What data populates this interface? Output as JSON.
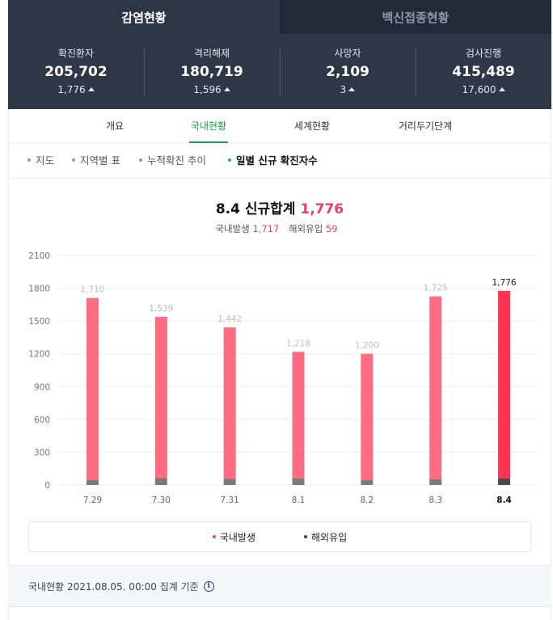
{
  "top_tabs": [
    {
      "label": "감염현황",
      "active": true
    },
    {
      "label": "백신접종현황",
      "active": false
    }
  ],
  "stats": [
    {
      "label": "확진환자",
      "value": "205,702",
      "delta": "1,776"
    },
    {
      "label": "격리해제",
      "value": "180,719",
      "delta": "1,596"
    },
    {
      "label": "사망자",
      "value": "2,109",
      "delta": "3"
    },
    {
      "label": "검사진행",
      "value": "415,489",
      "delta": "17,600"
    }
  ],
  "sub_tabs": [
    {
      "label": "개요",
      "active": false
    },
    {
      "label": "국내현황",
      "active": true
    },
    {
      "label": "세계현황",
      "active": false
    },
    {
      "label": "거리두기단계",
      "active": false
    }
  ],
  "filters": [
    {
      "label": "지도",
      "active": false
    },
    {
      "label": "지역별 표",
      "active": false
    },
    {
      "label": "누적확진 추이",
      "active": false
    },
    {
      "label": "일별 신규 확진자수",
      "active": true
    }
  ],
  "summary": {
    "title_prefix": "8.4 신규합계",
    "total": "1,776",
    "domestic_label": "국내발생",
    "domestic_value": "1,717",
    "overseas_label": "해외유입",
    "overseas_value": "59"
  },
  "chart_data": {
    "type": "bar",
    "stacked": true,
    "categories": [
      "7.29",
      "7.30",
      "7.31",
      "8.1",
      "8.2",
      "8.3",
      "8.4"
    ],
    "totals": [
      1710,
      1539,
      1442,
      1218,
      1200,
      1725,
      1776
    ],
    "total_labels": [
      "1,710",
      "1,539",
      "1,442",
      "1,218",
      "1,200",
      "1,725",
      "1,776"
    ],
    "series": [
      {
        "name": "국내발생",
        "values": [
          1664,
          1476,
          1387,
          1157,
          1155,
          1673,
          1717
        ],
        "color": "#ff6b81",
        "highlight_color": "#ff3355"
      },
      {
        "name": "해외유입",
        "values": [
          46,
          63,
          55,
          61,
          45,
          52,
          59
        ],
        "color": "#7a7a7a",
        "highlight_color": "#4a4a4a"
      }
    ],
    "ylim": [
      0,
      2100
    ],
    "yticks": [
      0,
      300,
      600,
      900,
      1200,
      1500,
      1800,
      2100
    ],
    "grid": true,
    "highlight_index": 6,
    "legend_position": "bottom"
  },
  "legend": [
    {
      "label": "국내발생",
      "color": "#f03e5c"
    },
    {
      "label": "해외유입",
      "color": "#444444"
    }
  ],
  "footer": {
    "text": "국내현황 2021.08.05. 00:00 집계 기준"
  }
}
